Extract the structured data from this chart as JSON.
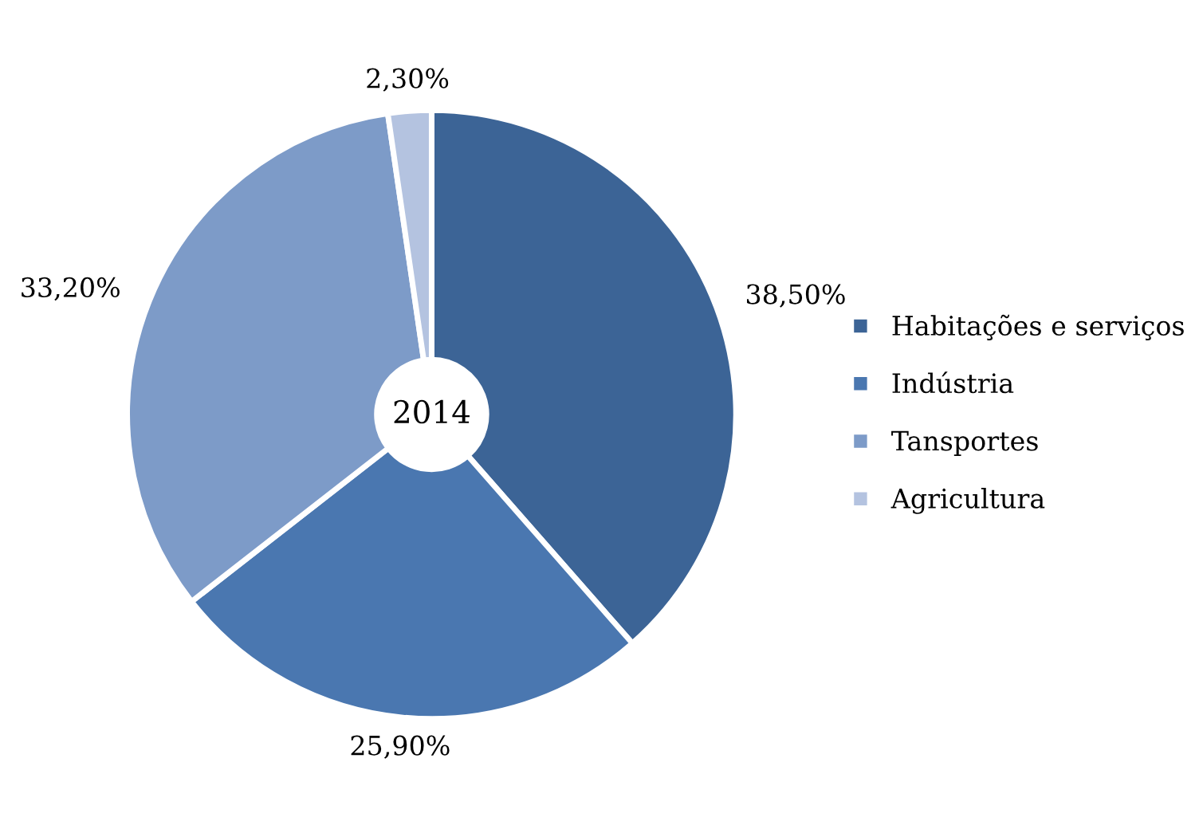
{
  "chart_data": {
    "type": "donut",
    "categories": [
      "Habitações e serviços",
      "Indústria",
      "Tansportes",
      "Agricultura"
    ],
    "values": [
      38.5,
      25.9,
      33.2,
      2.3
    ],
    "colors": [
      "#3c6496",
      "#4a77b0",
      "#7d9bc8",
      "#b4c3e0"
    ],
    "value_labels": [
      "38,50%",
      "25,90%",
      "33,20%",
      "2,30%"
    ],
    "annotations": [
      "2014"
    ],
    "legend": "right"
  }
}
